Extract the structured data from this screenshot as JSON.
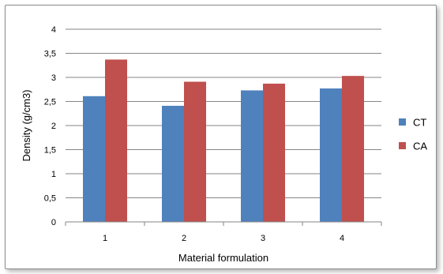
{
  "chart_data": {
    "type": "bar",
    "title": "",
    "xlabel": "Material formulation",
    "ylabel": "Density (g/cm3)",
    "categories": [
      "1",
      "2",
      "3",
      "4"
    ],
    "series": [
      {
        "name": "CT",
        "color": "#4f81bd",
        "values": [
          2.61,
          2.41,
          2.73,
          2.77
        ]
      },
      {
        "name": "CA",
        "color": "#c0504d",
        "values": [
          3.37,
          2.91,
          2.87,
          3.03
        ]
      }
    ],
    "ylim": [
      0,
      4
    ],
    "yticks": [
      "0",
      "0,5",
      "1",
      "1,5",
      "2",
      "2,5",
      "3",
      "3,5",
      "4"
    ],
    "grid": true,
    "legend_position": "right"
  }
}
